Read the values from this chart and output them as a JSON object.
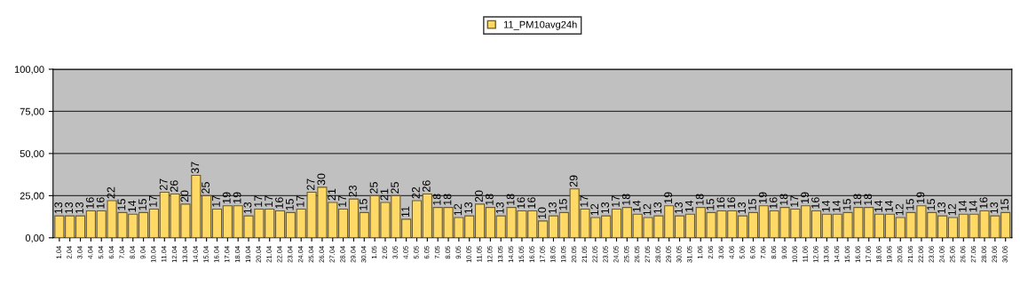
{
  "chart_data": {
    "type": "bar",
    "categories": [
      "1.04",
      "2.04",
      "3.04",
      "4.04",
      "5.04",
      "6.04",
      "7.04",
      "8.04",
      "9.04",
      "10.04",
      "11.04",
      "12.04",
      "13.04",
      "14.04",
      "15.04",
      "16.04",
      "17.04",
      "18.04",
      "19.04",
      "20.04",
      "21.04",
      "22.04",
      "23.04",
      "24.04",
      "25.04",
      "26.04",
      "27.04",
      "28.04",
      "29.04",
      "30.04",
      "1.05",
      "2.05",
      "3.05",
      "4.05",
      "5.05",
      "6.05",
      "7.05",
      "8.05",
      "9.05",
      "10.05",
      "11.05",
      "12.05",
      "13.05",
      "14.05",
      "15.05",
      "16.05",
      "17.05",
      "18.05",
      "19.05",
      "20.05",
      "21.05",
      "22.05",
      "23.05",
      "24.05",
      "25.05",
      "26.05",
      "27.05",
      "28.05",
      "29.05",
      "30.05",
      "31.05",
      "1.06",
      "2.06",
      "3.06",
      "4.06",
      "5.06",
      "6.06",
      "7.06",
      "8.06",
      "9.06",
      "10.06",
      "11.06",
      "12.06",
      "13.06",
      "14.06",
      "15.06",
      "16.06",
      "17.06",
      "18.06",
      "19.06",
      "20.06",
      "21.06",
      "22.06",
      "23.06",
      "24.06",
      "25.06",
      "26.06",
      "27.06",
      "28.06",
      "29.06",
      "30.06"
    ],
    "series": [
      {
        "name": "11_PM10avg24h",
        "color": "#ffd966",
        "values": [
          13,
          13,
          13,
          16,
          16,
          22,
          15,
          14,
          15,
          17,
          27,
          26,
          20,
          37,
          25,
          17,
          19,
          19,
          13,
          17,
          17,
          16,
          15,
          17,
          27,
          30,
          21,
          17,
          23,
          15,
          25,
          21,
          25,
          11,
          22,
          26,
          18,
          18,
          12,
          13,
          20,
          18,
          13,
          18,
          16,
          16,
          10,
          13,
          15,
          29,
          17,
          12,
          13,
          17,
          18,
          14,
          12,
          13,
          19,
          13,
          14,
          18,
          15,
          16,
          16,
          13,
          15,
          19,
          16,
          18,
          17,
          19,
          16,
          14,
          14,
          15,
          18,
          18,
          14,
          14,
          12,
          15,
          19,
          15,
          13,
          12,
          14,
          14,
          16,
          13,
          15
        ]
      }
    ],
    "ylim": [
      0,
      100
    ],
    "yticks": [
      {
        "value": 0,
        "label": "0,00"
      },
      {
        "value": 25,
        "label": "25,00"
      },
      {
        "value": 50,
        "label": "50,00"
      },
      {
        "value": 75,
        "label": "75,00"
      },
      {
        "value": 100,
        "label": "100,00"
      }
    ],
    "grid": "y",
    "legend": "top",
    "data_labels": true
  }
}
